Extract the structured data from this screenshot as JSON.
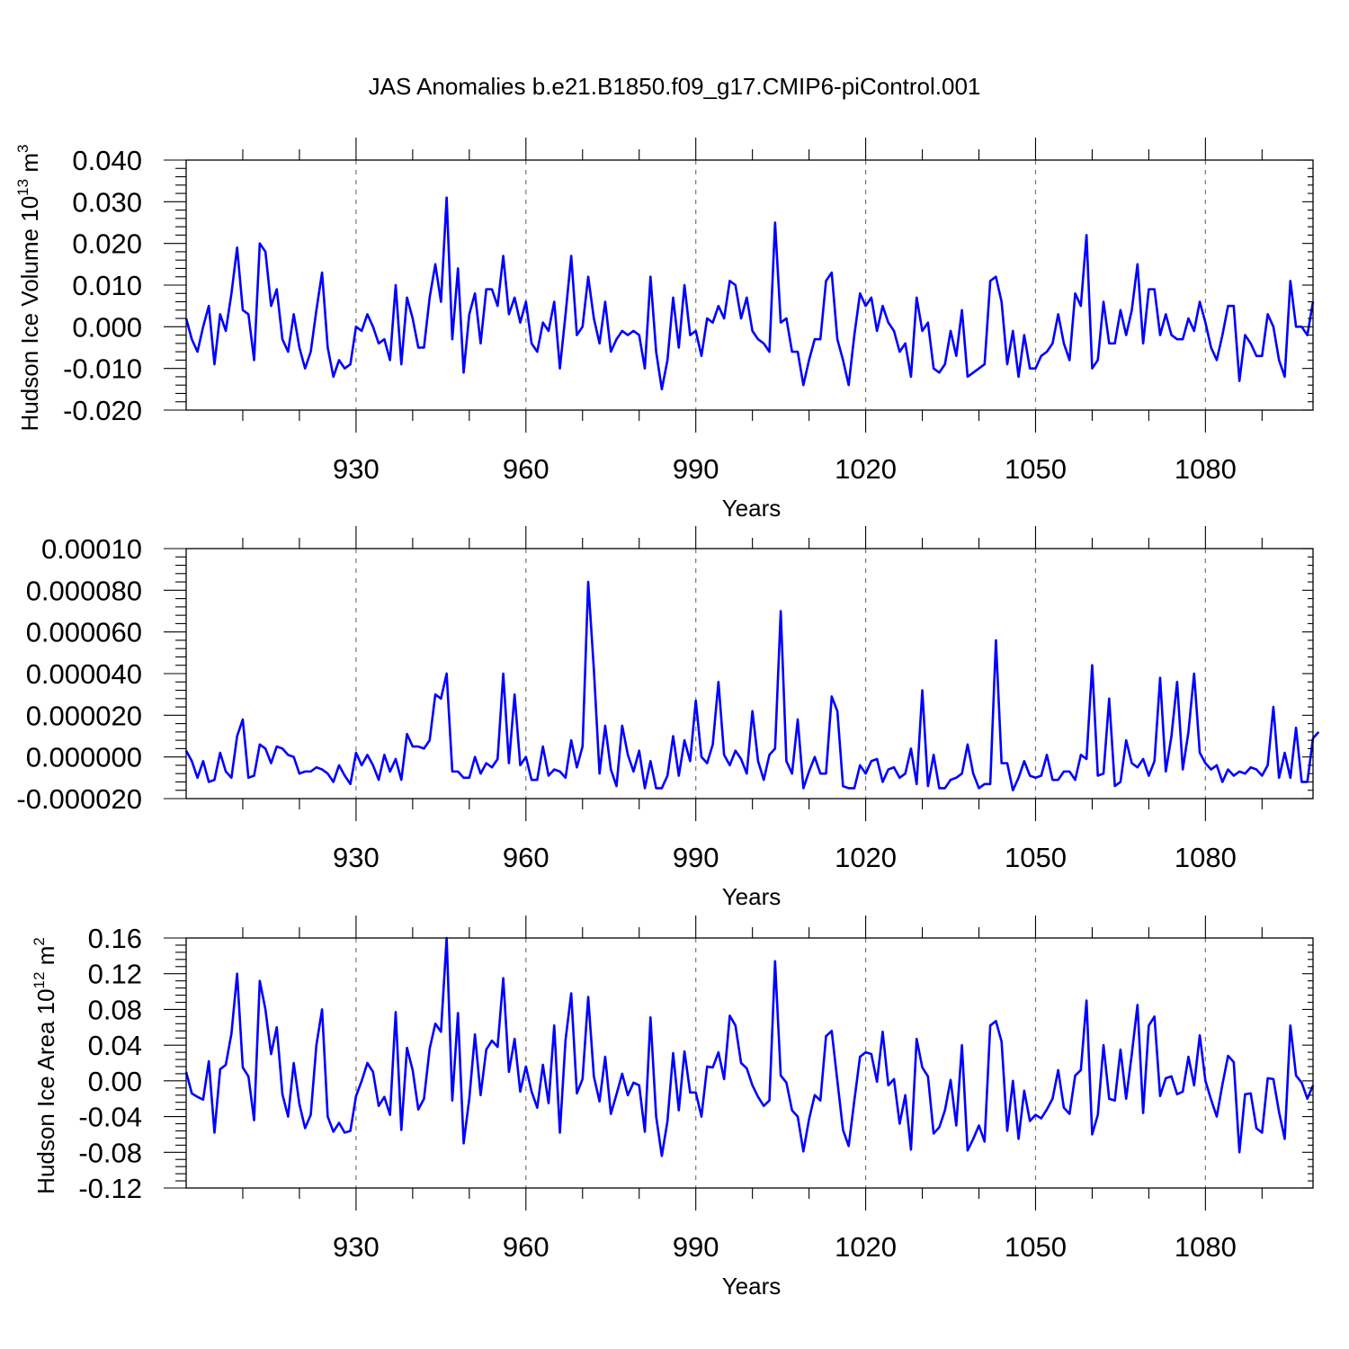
{
  "title": "JAS Anomalies b.e21.B1850.f09_g17.CMIP6-piControl.001",
  "chart_data": [
    {
      "type": "line",
      "title": "JAS Anomalies b.e21.B1850.f09_g17.CMIP6-piControl.001",
      "xlabel": "Years",
      "ylabel": "Hudson Ice Volume",
      "ylabel_unit": "10",
      "ylabel_exp": "13",
      "ylabel_m": "m",
      "ylabel_mexp": "3",
      "xlim": [
        900,
        1099
      ],
      "ylim": [
        -0.02,
        0.04
      ],
      "grid": "vertical dashed at x ticks",
      "xticks": [
        930,
        960,
        990,
        1020,
        1050,
        1080
      ],
      "xtick_labels": [
        "930",
        "960",
        "990",
        "1020",
        "1050",
        "1080"
      ],
      "yticks": [
        -0.02,
        -0.01,
        0.0,
        0.01,
        0.02,
        0.03,
        0.04
      ],
      "ytick_labels": [
        "-0.020",
        "-0.010",
        "0.000",
        "0.010",
        "0.020",
        "0.030",
        "0.040"
      ],
      "series": [
        {
          "name": "Hudson Ice Volume anomaly",
          "color": "#0000ff",
          "x_start": 900,
          "values": [
            0.002,
            -0.003,
            -0.006,
            0.0,
            0.005,
            -0.009,
            0.003,
            -0.001,
            0.008,
            0.019,
            0.004,
            0.003,
            -0.008,
            0.02,
            0.018,
            0.005,
            0.009,
            -0.003,
            -0.006,
            0.003,
            -0.005,
            -0.01,
            -0.006,
            0.004,
            0.013,
            -0.005,
            -0.012,
            -0.008,
            -0.01,
            -0.009,
            0.0,
            -0.001,
            0.003,
            0.0,
            -0.004,
            -0.003,
            -0.008,
            0.01,
            -0.009,
            0.007,
            0.002,
            -0.005,
            -0.005,
            0.007,
            0.015,
            0.006,
            0.031,
            -0.003,
            0.014,
            -0.011,
            0.003,
            0.008,
            -0.004,
            0.009,
            0.009,
            0.005,
            0.017,
            0.003,
            0.007,
            0.001,
            0.006,
            -0.004,
            -0.006,
            0.001,
            -0.001,
            0.006,
            -0.01,
            0.003,
            0.017,
            -0.002,
            0.0,
            0.012,
            0.002,
            -0.004,
            0.006,
            -0.006,
            -0.003,
            -0.001,
            -0.002,
            -0.001,
            -0.002,
            -0.01,
            0.012,
            -0.006,
            -0.015,
            -0.008,
            0.007,
            -0.005,
            0.01,
            -0.002,
            -0.001,
            -0.007,
            0.002,
            0.001,
            0.005,
            0.002,
            0.011,
            0.01,
            0.002,
            0.007,
            -0.001,
            -0.003,
            -0.004,
            -0.006,
            0.025,
            0.001,
            0.002,
            -0.006,
            -0.006,
            -0.014,
            -0.008,
            -0.003,
            -0.003,
            0.011,
            0.013,
            -0.003,
            -0.008,
            -0.014,
            -0.002,
            0.008,
            0.005,
            0.007,
            -0.001,
            0.005,
            0.001,
            -0.001,
            -0.006,
            -0.004,
            -0.012,
            0.007,
            -0.001,
            0.001,
            -0.01,
            -0.011,
            -0.009,
            -0.001,
            -0.007,
            0.004,
            -0.012,
            -0.011,
            -0.01,
            -0.009,
            0.011,
            0.012,
            0.006,
            -0.009,
            -0.001,
            -0.012,
            -0.002,
            -0.01,
            -0.01,
            -0.007,
            -0.006,
            -0.004,
            0.003,
            -0.004,
            -0.008,
            0.008,
            0.005,
            0.022,
            -0.01,
            -0.008,
            0.006,
            -0.004,
            -0.004,
            0.004,
            -0.002,
            0.004,
            0.015,
            -0.004,
            0.009,
            0.009,
            -0.002,
            0.003,
            -0.002,
            -0.003,
            -0.003,
            0.002,
            -0.001,
            0.006,
            0.001,
            -0.005,
            -0.008,
            -0.002,
            0.005,
            0.005,
            -0.013,
            -0.002,
            -0.004,
            -0.007,
            -0.007,
            0.003,
            0.0,
            -0.008,
            -0.012,
            0.011,
            0.0,
            0.0,
            -0.002,
            0.006
          ]
        }
      ]
    },
    {
      "type": "line",
      "xlabel": "Years",
      "ylabel": "",
      "xlim": [
        900,
        1099
      ],
      "ylim": [
        -2e-05,
        0.0001
      ],
      "grid": "vertical dashed at x ticks",
      "xticks": [
        930,
        960,
        990,
        1020,
        1050,
        1080
      ],
      "xtick_labels": [
        "930",
        "960",
        "990",
        "1020",
        "1050",
        "1080"
      ],
      "yticks": [
        -2e-05,
        0.0,
        2e-05,
        4e-05,
        6e-05,
        8e-05,
        0.0001
      ],
      "ytick_labels": [
        "-0.000020",
        "0.000000",
        "0.000020",
        "0.000040",
        "0.000060",
        "0.000080",
        "0.00010"
      ],
      "series": [
        {
          "name": "anomaly",
          "color": "#0000ff",
          "x_start": 900,
          "values": [
            3e-06,
            -2e-06,
            -1e-05,
            -2e-06,
            -1.2e-05,
            -1.1e-05,
            2e-06,
            -7e-06,
            -1e-05,
            1e-05,
            1.8e-05,
            -1e-05,
            -9e-06,
            6e-06,
            4e-06,
            -3e-06,
            5e-06,
            4e-06,
            1e-06,
            0.0,
            -8e-06,
            -7e-06,
            -7e-06,
            -5e-06,
            -6e-06,
            -8e-06,
            -1.2e-05,
            -4e-06,
            -9e-06,
            -1.3e-05,
            2e-06,
            -4e-06,
            1e-06,
            -4e-06,
            -1.1e-05,
            1e-06,
            -7e-06,
            -1e-06,
            -1.1e-05,
            1.1e-05,
            5e-06,
            5e-06,
            4e-06,
            8e-06,
            3e-05,
            2.8e-05,
            4e-05,
            -7e-06,
            -7e-06,
            -1e-05,
            -1e-05,
            0.0,
            -8e-06,
            -3e-06,
            -5e-06,
            -1e-06,
            4e-05,
            -3e-06,
            3e-05,
            -4e-06,
            0.0,
            -1.1e-05,
            -1.1e-05,
            5e-06,
            -9e-06,
            -6e-06,
            -7e-06,
            -1e-05,
            8e-06,
            -5e-06,
            5e-06,
            8.4e-05,
            4.2e-05,
            -8e-06,
            1.5e-05,
            -6e-06,
            -1.4e-05,
            1.5e-05,
            1e-06,
            -7e-06,
            3e-06,
            -1.5e-05,
            -2e-06,
            -1.5e-05,
            -1.5e-05,
            -9e-06,
            1e-05,
            -9e-06,
            8e-06,
            -2e-06,
            2.7e-05,
            0.0,
            -3e-06,
            6e-06,
            3.6e-05,
            1e-06,
            -4e-06,
            3e-06,
            -1e-06,
            -8e-06,
            2.2e-05,
            -2e-06,
            -1.1e-05,
            1e-06,
            4e-06,
            7e-05,
            -2e-06,
            -8e-06,
            1.8e-05,
            -1.5e-05,
            -7e-06,
            0.0,
            -8e-06,
            -8e-06,
            2.9e-05,
            2.2e-05,
            -1.4e-05,
            -1.5e-05,
            -1.5e-05,
            -4e-06,
            -8e-06,
            -2e-06,
            -1e-06,
            -1.2e-05,
            -6e-06,
            -5e-06,
            -1e-05,
            -8e-06,
            4e-06,
            -1.3e-05,
            3.2e-05,
            -1.4e-05,
            1e-06,
            -1.5e-05,
            -1.5e-05,
            -1.1e-05,
            -1e-05,
            -8e-06,
            6e-06,
            -8e-06,
            -1.5e-05,
            -1.3e-05,
            -1.3e-05,
            5.6e-05,
            -3e-06,
            -3e-06,
            -1.6e-05,
            -1e-05,
            -2e-06,
            -9e-06,
            -1e-05,
            -9e-06,
            1e-06,
            -1.1e-05,
            -1.1e-05,
            -7e-06,
            -7e-06,
            -1.1e-05,
            1e-06,
            -1e-06,
            4.4e-05,
            -9e-06,
            -8e-06,
            2.8e-05,
            -1.4e-05,
            -1.2e-05,
            8e-06,
            -3e-06,
            -5e-06,
            -1e-06,
            -9e-06,
            -2e-06,
            3.8e-05,
            -7e-06,
            1e-05,
            3.6e-05,
            -6e-06,
            1.2e-05,
            4e-05,
            2e-06,
            -3e-06,
            -6e-06,
            -4e-06,
            -1.2e-05,
            -6e-06,
            -9e-06,
            -7e-06,
            -8e-06,
            -5e-06,
            -6e-06,
            -9e-06,
            -4e-06,
            2.4e-05,
            -1e-05,
            2e-06,
            -1e-05,
            1.4e-05,
            -1.2e-05,
            -1.2e-05,
            9e-06,
            1.2e-05
          ]
        }
      ]
    },
    {
      "type": "line",
      "xlabel": "Years",
      "ylabel": "Hudson Ice Area",
      "ylabel_unit": "10",
      "ylabel_exp": "12",
      "ylabel_m": "m",
      "ylabel_mexp": "2",
      "xlim": [
        900,
        1099
      ],
      "ylim": [
        -0.12,
        0.16
      ],
      "grid": "vertical dashed at x ticks",
      "xticks": [
        930,
        960,
        990,
        1020,
        1050,
        1080
      ],
      "xtick_labels": [
        "930",
        "960",
        "990",
        "1020",
        "1050",
        "1080"
      ],
      "yticks": [
        -0.12,
        -0.08,
        -0.04,
        0.0,
        0.04,
        0.08,
        0.12,
        0.16
      ],
      "ytick_labels": [
        "-0.12",
        "-0.08",
        "-0.04",
        "0.00",
        "0.04",
        "0.08",
        "0.12",
        "0.16"
      ],
      "series": [
        {
          "name": "Hudson Ice Area anomaly",
          "color": "#0000ff",
          "x_start": 900,
          "values": [
            0.01,
            -0.014,
            -0.018,
            -0.021,
            0.022,
            -0.058,
            0.013,
            0.018,
            0.053,
            0.12,
            0.015,
            0.005,
            -0.044,
            0.112,
            0.08,
            0.03,
            0.06,
            -0.015,
            -0.04,
            0.02,
            -0.026,
            -0.053,
            -0.038,
            0.04,
            0.08,
            -0.04,
            -0.057,
            -0.047,
            -0.058,
            -0.056,
            -0.017,
            0.0,
            0.02,
            0.01,
            -0.028,
            -0.018,
            -0.038,
            0.077,
            -0.055,
            0.037,
            0.012,
            -0.032,
            -0.02,
            0.036,
            0.064,
            0.055,
            0.16,
            -0.022,
            0.076,
            -0.07,
            -0.02,
            0.052,
            -0.016,
            0.035,
            0.045,
            0.038,
            0.115,
            0.01,
            0.047,
            -0.012,
            0.016,
            -0.012,
            -0.03,
            0.018,
            -0.025,
            0.062,
            -0.058,
            0.046,
            0.098,
            -0.014,
            0.002,
            0.094,
            0.005,
            -0.023,
            0.027,
            -0.037,
            -0.015,
            0.008,
            -0.016,
            -0.002,
            -0.005,
            -0.057,
            0.071,
            -0.04,
            -0.084,
            -0.045,
            0.031,
            -0.033,
            0.033,
            -0.013,
            -0.013,
            -0.04,
            0.016,
            0.015,
            0.032,
            0.002,
            0.073,
            0.062,
            0.02,
            0.014,
            -0.005,
            -0.018,
            -0.028,
            -0.022,
            0.134,
            0.006,
            -0.002,
            -0.033,
            -0.04,
            -0.079,
            -0.043,
            -0.016,
            -0.022,
            0.05,
            0.056,
            0.0,
            -0.055,
            -0.073,
            -0.022,
            0.027,
            0.032,
            0.03,
            -0.001,
            0.055,
            -0.005,
            0.002,
            -0.048,
            -0.016,
            -0.077,
            0.047,
            0.015,
            0.005,
            -0.059,
            -0.052,
            -0.033,
            0.001,
            -0.05,
            0.04,
            -0.078,
            -0.065,
            -0.05,
            -0.068,
            0.062,
            0.067,
            0.044,
            -0.056,
            0.0,
            -0.065,
            -0.011,
            -0.045,
            -0.038,
            -0.042,
            -0.032,
            -0.02,
            0.012,
            -0.03,
            -0.037,
            0.006,
            0.012,
            0.09,
            -0.06,
            -0.038,
            0.04,
            -0.02,
            -0.022,
            0.035,
            -0.02,
            0.03,
            0.085,
            -0.036,
            0.062,
            0.072,
            -0.017,
            0.003,
            0.005,
            -0.015,
            -0.012,
            0.027,
            -0.005,
            0.051,
            0.0,
            -0.021,
            -0.04,
            -0.004,
            0.028,
            0.021,
            -0.08,
            -0.015,
            -0.014,
            -0.053,
            -0.058,
            0.003,
            0.002,
            -0.035,
            -0.065,
            0.062,
            0.006,
            -0.002,
            -0.02,
            -0.005
          ]
        }
      ]
    }
  ]
}
